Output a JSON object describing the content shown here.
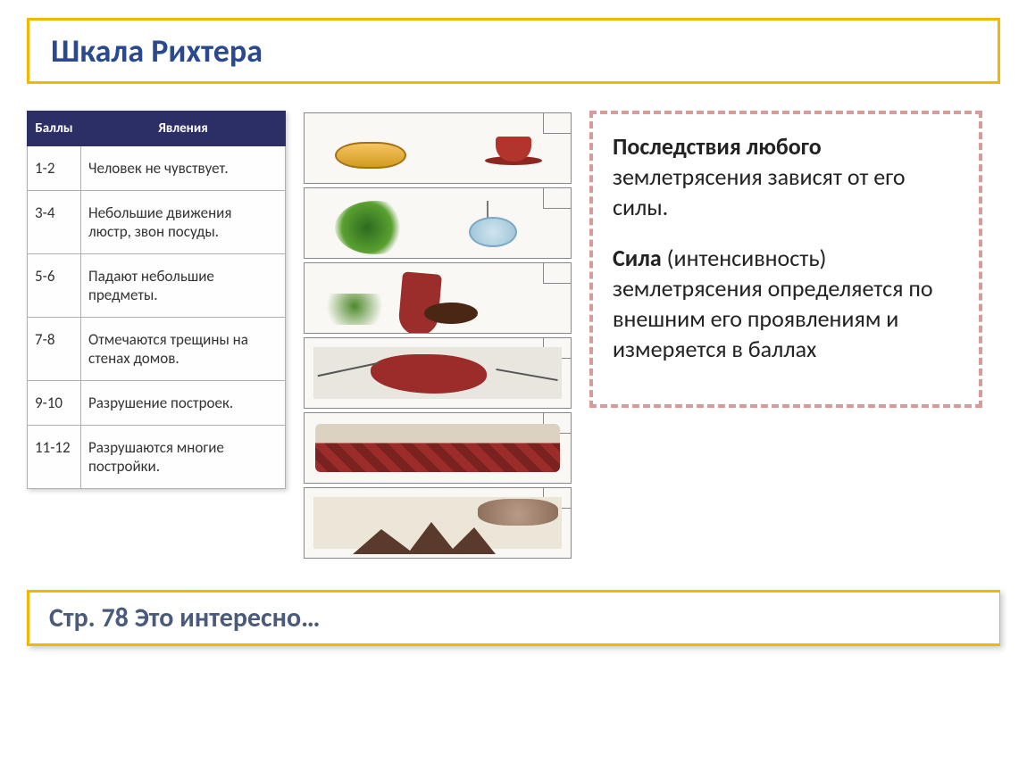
{
  "title": "Шкала Рихтера",
  "table": {
    "headers": {
      "col1": "Баллы",
      "col2": "Явления"
    },
    "rows": [
      {
        "score": "1-2",
        "desc": "Человек не чувствует."
      },
      {
        "score": "3-4",
        "desc": "Небольшие движения люстр, звон посуды."
      },
      {
        "score": "5-6",
        "desc": "Падают небольшие предметы."
      },
      {
        "score": "7-8",
        "desc": "Отмечаются трещины на стенах домов."
      },
      {
        "score": "9-10",
        "desc": "Разрушение построек."
      },
      {
        "score": "11-12",
        "desc": "Разрушаются многие постройки."
      }
    ],
    "header_bg": "#2b2f66",
    "header_text_color": "#ffffff",
    "border_color": "#b0b0b0",
    "font_size": 17
  },
  "illustrations": [
    {
      "name": "dishes-rattle",
      "alt": "Тарелка и чашка"
    },
    {
      "name": "chandelier-sway",
      "alt": "Люстра качается, растение"
    },
    {
      "name": "pot-falls",
      "alt": "Упавший горшок"
    },
    {
      "name": "wall-crack",
      "alt": "Трещины в стене, виден кирпич"
    },
    {
      "name": "building-rubble",
      "alt": "Разрушенная постройка"
    },
    {
      "name": "total-collapse",
      "alt": "Полное разрушение, трещина в земле"
    }
  ],
  "sidebar": {
    "p1_bold": "Последствия любого",
    "p1_rest": " землетрясения зависят от его силы.",
    "p2_bold": "Сила",
    "p2_rest": " (интенсивность) землетрясения определяется по внешним его проявлениям и измеряется в баллах",
    "border_color": "#d89b9a",
    "font_size": 26
  },
  "footer": "Стр. 78 Это интересно…",
  "colors": {
    "title_border": "#f0b800",
    "title_text": "#2b4a8e",
    "footer_text": "#4a5a7a",
    "background": "#ffffff"
  }
}
